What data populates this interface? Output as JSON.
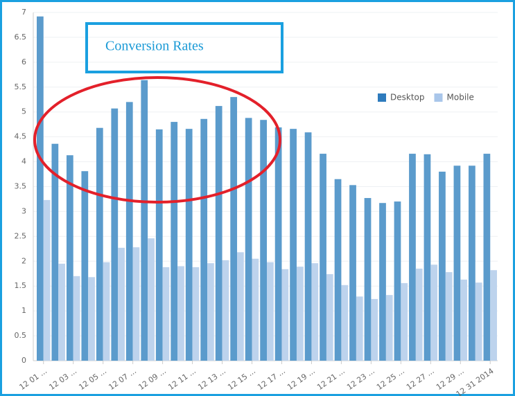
{
  "chart_data": {
    "type": "bar",
    "annotation": "Conversion Rates",
    "categories": [
      "12 01 ...",
      null,
      "12 03 ...",
      null,
      "12 05 ...",
      null,
      "12 07 ...",
      null,
      "12 09 ...",
      null,
      "12 11 ...",
      null,
      "12 13 ...",
      null,
      "12 15 ...",
      null,
      "12 17 ...",
      null,
      "12 19 ...",
      null,
      "12 21 ...",
      null,
      "12 23 ...",
      null,
      "12 25 ...",
      null,
      "12 27 ...",
      null,
      "12 29 ...",
      null,
      "12 31 2014"
    ],
    "series": [
      {
        "name": "Desktop",
        "color": "#5b9bcc",
        "legend_color": "#2e7bbd",
        "values": [
          6.92,
          4.36,
          4.13,
          3.81,
          4.68,
          5.07,
          5.2,
          5.64,
          4.65,
          4.8,
          4.66,
          4.86,
          5.12,
          5.3,
          4.88,
          4.84,
          4.69,
          4.66,
          4.59,
          4.16,
          3.65,
          3.53,
          3.27,
          3.17,
          3.2,
          4.16,
          4.15,
          3.8,
          3.92,
          3.92,
          4.16
        ]
      },
      {
        "name": "Mobile",
        "color": "#bdd3ed",
        "legend_color": "#a9c6ea",
        "values": [
          3.23,
          1.95,
          1.7,
          1.68,
          1.98,
          2.27,
          2.28,
          2.46,
          1.88,
          1.9,
          1.88,
          1.96,
          2.02,
          2.18,
          2.05,
          1.98,
          1.84,
          1.89,
          1.96,
          1.74,
          1.52,
          1.29,
          1.24,
          1.32,
          1.56,
          1.85,
          1.93,
          1.78,
          1.63,
          1.57,
          1.82
        ]
      }
    ],
    "ylim": [
      0,
      7
    ],
    "yticks": [
      0,
      0.5,
      1,
      1.5,
      2,
      2.5,
      3,
      3.5,
      4,
      4.5,
      5,
      5.5,
      6,
      6.5,
      7
    ],
    "grid": true,
    "legend": "upper right"
  }
}
